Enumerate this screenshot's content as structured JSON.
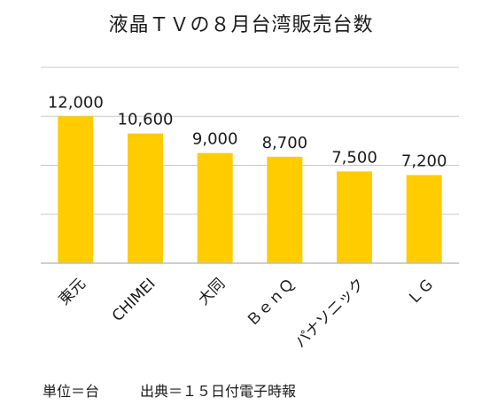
{
  "chart_data": {
    "type": "bar",
    "title": "液晶ＴＶの８月台湾販売台数",
    "categories": [
      "東元",
      "CHIMEI",
      "大同",
      "ＢｅｎＱ",
      "パナソニック",
      "ＬＧ"
    ],
    "values": [
      12000,
      10600,
      9000,
      8700,
      7500,
      7200
    ],
    "value_labels": [
      "12,000",
      "10,600",
      "9,000",
      "8,700",
      "7,500",
      "7,200"
    ],
    "ylim": [
      0,
      16000
    ],
    "grid": true,
    "bar_color": "#ffcc00"
  },
  "footer": {
    "unit": "単位＝台",
    "source": "出典＝１５日付電子時報"
  }
}
